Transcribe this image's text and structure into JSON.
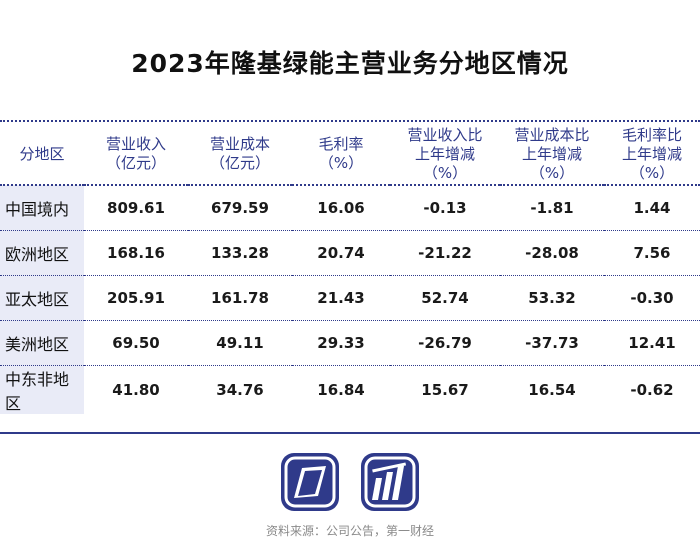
{
  "title": "2023年隆基绿能主营业务分地区情况",
  "headers": [
    [
      "分地区"
    ],
    [
      "营业收入",
      "（亿元）"
    ],
    [
      "营业成本",
      "（亿元）"
    ],
    [
      "毛利率",
      "（%）"
    ],
    [
      "营业收入比",
      "上年增减",
      "（%）"
    ],
    [
      "营业成本比",
      "上年增减",
      "（%）"
    ],
    [
      "毛利率比",
      "上年增减",
      "（%）"
    ]
  ],
  "rows": [
    [
      "中国境内",
      "809.61",
      "679.59",
      "16.06",
      "-0.13",
      "-1.81",
      "1.44"
    ],
    [
      "欧洲地区",
      "168.16",
      "133.28",
      "20.74",
      "-21.22",
      "-28.08",
      "7.56"
    ],
    [
      "亚太地区",
      "205.91",
      "161.78",
      "21.43",
      "52.74",
      "53.32",
      "-0.30"
    ],
    [
      "美洲地区",
      "69.50",
      "49.11",
      "29.33",
      "-26.79",
      "-37.73",
      "12.41"
    ],
    [
      "中东非地区",
      "41.80",
      "34.76",
      "16.84",
      "15.67",
      "16.54",
      "-0.62"
    ]
  ],
  "source": "资料来源：公司公告，第一财经",
  "colors": {
    "accent": "#2f3a8a",
    "region_bg": "#e9ebf7"
  },
  "chart_data": {
    "type": "table",
    "title": "2023年隆基绿能主营业务分地区情况",
    "columns": [
      "分地区",
      "营业收入（亿元）",
      "营业成本（亿元）",
      "毛利率（%）",
      "营业收入比上年增减（%）",
      "营业成本比上年增减（%）",
      "毛利率比上年增减（%）"
    ],
    "rows": [
      [
        "中国境内",
        809.61,
        679.59,
        16.06,
        -0.13,
        -1.81,
        1.44
      ],
      [
        "欧洲地区",
        168.16,
        133.28,
        20.74,
        -21.22,
        -28.08,
        7.56
      ],
      [
        "亚太地区",
        205.91,
        161.78,
        21.43,
        52.74,
        53.32,
        -0.3
      ],
      [
        "美洲地区",
        69.5,
        49.11,
        29.33,
        -26.79,
        -37.73,
        12.41
      ],
      [
        "中东非地区",
        41.8,
        34.76,
        16.84,
        15.67,
        16.54,
        -0.62
      ]
    ]
  }
}
